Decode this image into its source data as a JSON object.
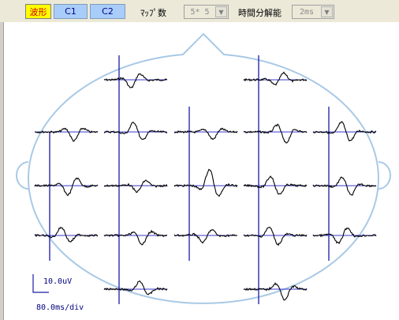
{
  "toolbar": {
    "waveform_label": "波形",
    "c1_label": "C1",
    "c2_label": "C2",
    "map_count_label": "ﾏｯﾌﾟ数",
    "map_count_value": "5* 5",
    "time_resolution_label": "時間分解能",
    "time_resolution_value": "2ms"
  },
  "scale": {
    "amplitude": "10.0uV",
    "time": "80.0ms/div"
  },
  "colors": {
    "head_outline": "#a9c9e6",
    "marker_line": "#1a1aa8",
    "baseline": "#3a3ad0",
    "waveform": "#000000",
    "active_button": "#ffff00"
  }
}
